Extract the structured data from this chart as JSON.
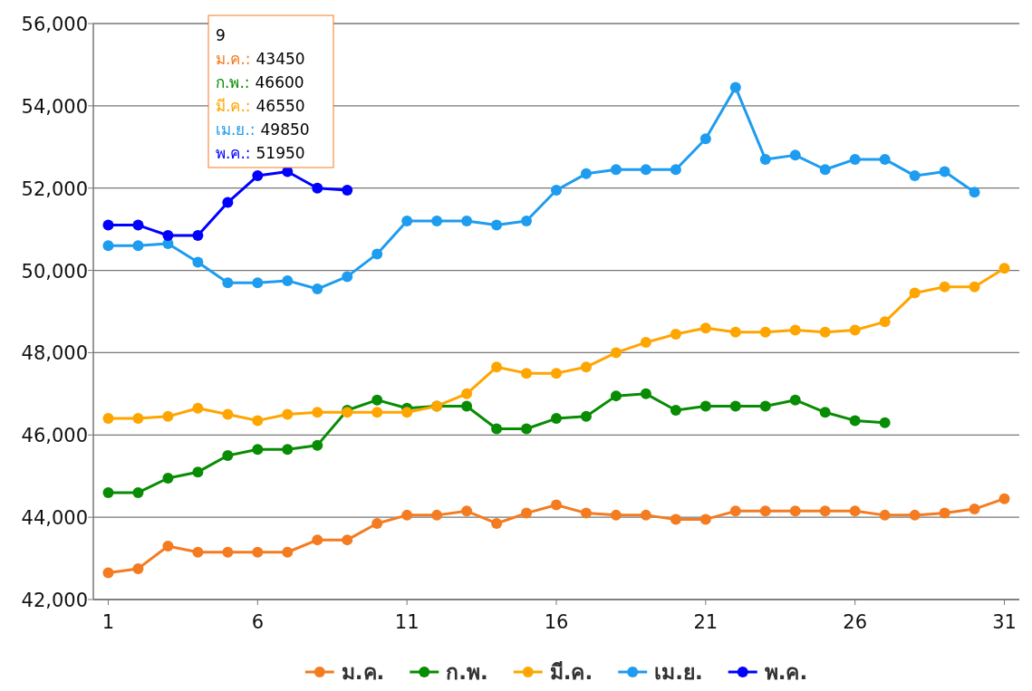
{
  "chart_data": {
    "type": "line",
    "x": [
      1,
      2,
      3,
      4,
      5,
      6,
      7,
      8,
      9,
      10,
      11,
      12,
      13,
      14,
      15,
      16,
      17,
      18,
      19,
      20,
      21,
      22,
      23,
      24,
      25,
      26,
      27,
      28,
      29,
      30,
      31
    ],
    "xlim": [
      0.5,
      31.5
    ],
    "xticks": [
      1,
      6,
      11,
      16,
      21,
      26,
      31
    ],
    "ylim": [
      42000,
      56000
    ],
    "yticks": [
      {
        "value": 42000,
        "label": "42,000"
      },
      {
        "value": 44000,
        "label": "44,000"
      },
      {
        "value": 46000,
        "label": "46,000"
      },
      {
        "value": 48000,
        "label": "48,000"
      },
      {
        "value": 50000,
        "label": "50,000"
      },
      {
        "value": 52000,
        "label": "52,000"
      },
      {
        "value": 54000,
        "label": "54,000"
      },
      {
        "value": 56000,
        "label": "56,000"
      }
    ],
    "grid": "y",
    "legend": "bottom",
    "marker": "circle",
    "line_style": "solid",
    "series": [
      {
        "name": "ม.ค.",
        "color": "#f47b20",
        "values": [
          42650,
          42750,
          43300,
          43150,
          43150,
          43150,
          43150,
          43450,
          43450,
          43850,
          44050,
          44050,
          44150,
          43850,
          44100,
          44300,
          44100,
          44050,
          44050,
          43950,
          43950,
          44150,
          44150,
          44150,
          44150,
          44150,
          44050,
          44050,
          44100,
          44200,
          44450
        ]
      },
      {
        "name": "ก.พ.",
        "color": "#078c03",
        "values": [
          44600,
          44600,
          44950,
          45100,
          45500,
          45650,
          45650,
          45750,
          46600,
          46850,
          46650,
          46700,
          46700,
          46150,
          46150,
          46400,
          46450,
          46950,
          47000,
          46600,
          46700,
          46700,
          46700,
          46850,
          46550,
          46350,
          46300,
          null,
          null,
          null,
          null
        ]
      },
      {
        "name": "มี.ค.",
        "color": "#ffa500",
        "values": [
          46400,
          46400,
          46450,
          46650,
          46500,
          46350,
          46500,
          46550,
          46550,
          46550,
          46550,
          46700,
          47000,
          47650,
          47500,
          47500,
          47650,
          48000,
          48250,
          48450,
          48600,
          48500,
          48500,
          48550,
          48500,
          48550,
          48750,
          49450,
          49600,
          49600,
          50050
        ]
      },
      {
        "name": "เม.ย.",
        "color": "#1e9cef",
        "values": [
          50600,
          50600,
          50650,
          50200,
          49700,
          49700,
          49750,
          49550,
          49850,
          50400,
          51200,
          51200,
          51200,
          51100,
          51200,
          51950,
          52350,
          52450,
          52450,
          52450,
          53200,
          54450,
          52700,
          52800,
          52450,
          52700,
          52700,
          52300,
          52400,
          51900,
          null
        ]
      },
      {
        "name": "พ.ค.",
        "color": "#0000ff",
        "values": [
          51100,
          51100,
          50850,
          50850,
          51650,
          52300,
          52400,
          52000,
          51950,
          null,
          null,
          null,
          null,
          null,
          null,
          null,
          null,
          null,
          null,
          null,
          null,
          null,
          null,
          null,
          null,
          null,
          null,
          null,
          null,
          null,
          null
        ]
      }
    ],
    "annotations": [
      "9",
      "ม.ค.: 43450",
      "ก.พ.: 46600",
      "มี.ค.: 46550",
      "เม.ย.: 49850",
      "พ.ค.: 51950"
    ]
  }
}
